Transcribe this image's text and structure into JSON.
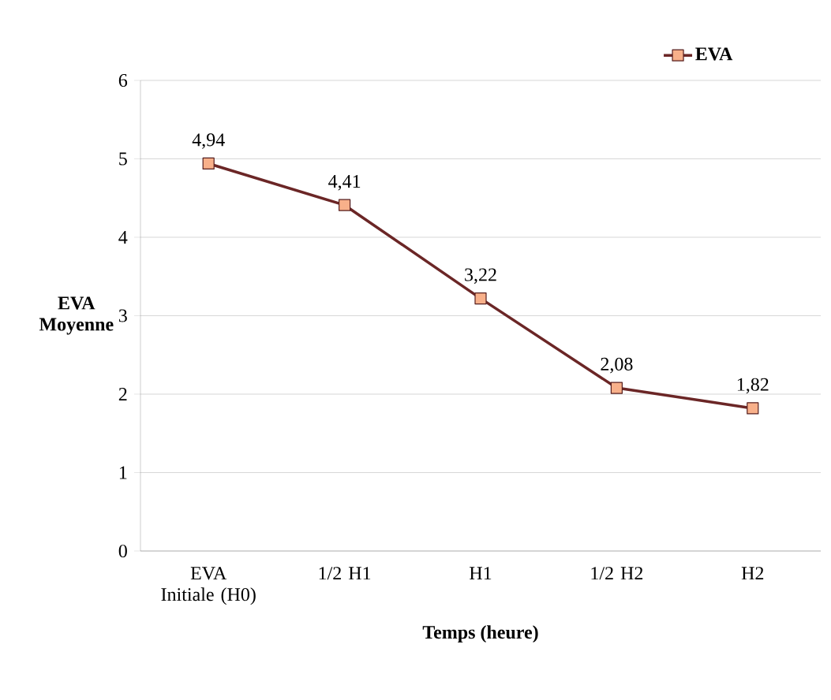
{
  "chart_data": {
    "type": "line",
    "xlabel": "Temps (heure)",
    "ylabel": "EVA Moyenne",
    "categories": [
      "EVA Initiale (H0)",
      "1/2  H1",
      "H1",
      "1/2 H2",
      "H2"
    ],
    "series": [
      {
        "name": "EVA",
        "color": "#6b2626",
        "values": [
          4.94,
          4.41,
          3.22,
          2.08,
          1.82
        ],
        "value_labels": [
          "4,94",
          "4,41",
          "3,22",
          "2,08",
          "1,82"
        ]
      }
    ],
    "ylim": [
      0,
      6
    ],
    "yticks": [
      0,
      1,
      2,
      3,
      4,
      5,
      6
    ],
    "grid": "y",
    "legend": "top right",
    "marker": "square"
  }
}
